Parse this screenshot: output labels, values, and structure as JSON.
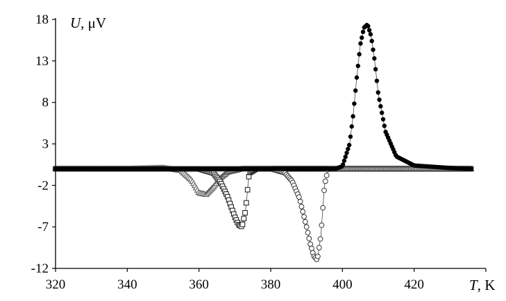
{
  "chart_data": {
    "type": "scatter",
    "xlabel_symbol": "T",
    "xlabel_unit": ", K",
    "ylabel_symbol": "U",
    "ylabel_unit": ", μV",
    "xlim": [
      320,
      440
    ],
    "ylim": [
      -12,
      18
    ],
    "x_ticks": [
      "320",
      "340",
      "360",
      "380",
      "400",
      "420"
    ],
    "y_ticks": [
      "18",
      "13",
      "8",
      "3",
      "-2",
      "-7",
      "-12"
    ],
    "y_tick_values": [
      18,
      13,
      8,
      3,
      -2,
      -7,
      -12
    ],
    "x_tick_values": [
      320,
      340,
      360,
      380,
      400,
      420
    ],
    "grid": false,
    "series": [
      {
        "marker": "triangle-open",
        "x": [
          320,
          330,
          340,
          350,
          355,
          358,
          360,
          362,
          364,
          366,
          368,
          372,
          380,
          390,
          400,
          410,
          420,
          430,
          436
        ],
        "y": [
          0,
          0,
          0,
          0.1,
          -0.2,
          -1.4,
          -2.9,
          -3.1,
          -2.2,
          -1.1,
          -0.4,
          0,
          0,
          0,
          0,
          0,
          0,
          0,
          0
        ]
      },
      {
        "marker": "square-open",
        "x": [
          320,
          340,
          360,
          364,
          366,
          368,
          370,
          371,
          372,
          373,
          374,
          376,
          380,
          400,
          420,
          436
        ],
        "y": [
          0,
          0,
          0,
          -0.5,
          -1.6,
          -3.4,
          -5.8,
          -6.7,
          -7.0,
          -5.0,
          -0.5,
          0,
          0,
          0,
          0,
          0
        ]
      },
      {
        "marker": "circle-open",
        "x": [
          320,
          340,
          360,
          380,
          384,
          386,
          388,
          390,
          391,
          392,
          393,
          394,
          395,
          396,
          398,
          420,
          436
        ],
        "y": [
          0,
          0,
          0,
          0,
          -0.5,
          -1.5,
          -3.5,
          -7.0,
          -9.0,
          -10.5,
          -11.0,
          -8.0,
          -2.0,
          0,
          0,
          0,
          0
        ]
      },
      {
        "marker": "circle-filled",
        "x": [
          320,
          340,
          360,
          380,
          398,
          400,
          402,
          403,
          404,
          405,
          406,
          407,
          408,
          409,
          410,
          412,
          415,
          420,
          430,
          436
        ],
        "y": [
          0,
          0,
          0,
          0,
          0,
          0.3,
          3.0,
          6.5,
          11.0,
          15.0,
          17.0,
          17.4,
          16.0,
          13.0,
          9.0,
          4.5,
          1.5,
          0.4,
          0.1,
          0
        ]
      }
    ]
  }
}
